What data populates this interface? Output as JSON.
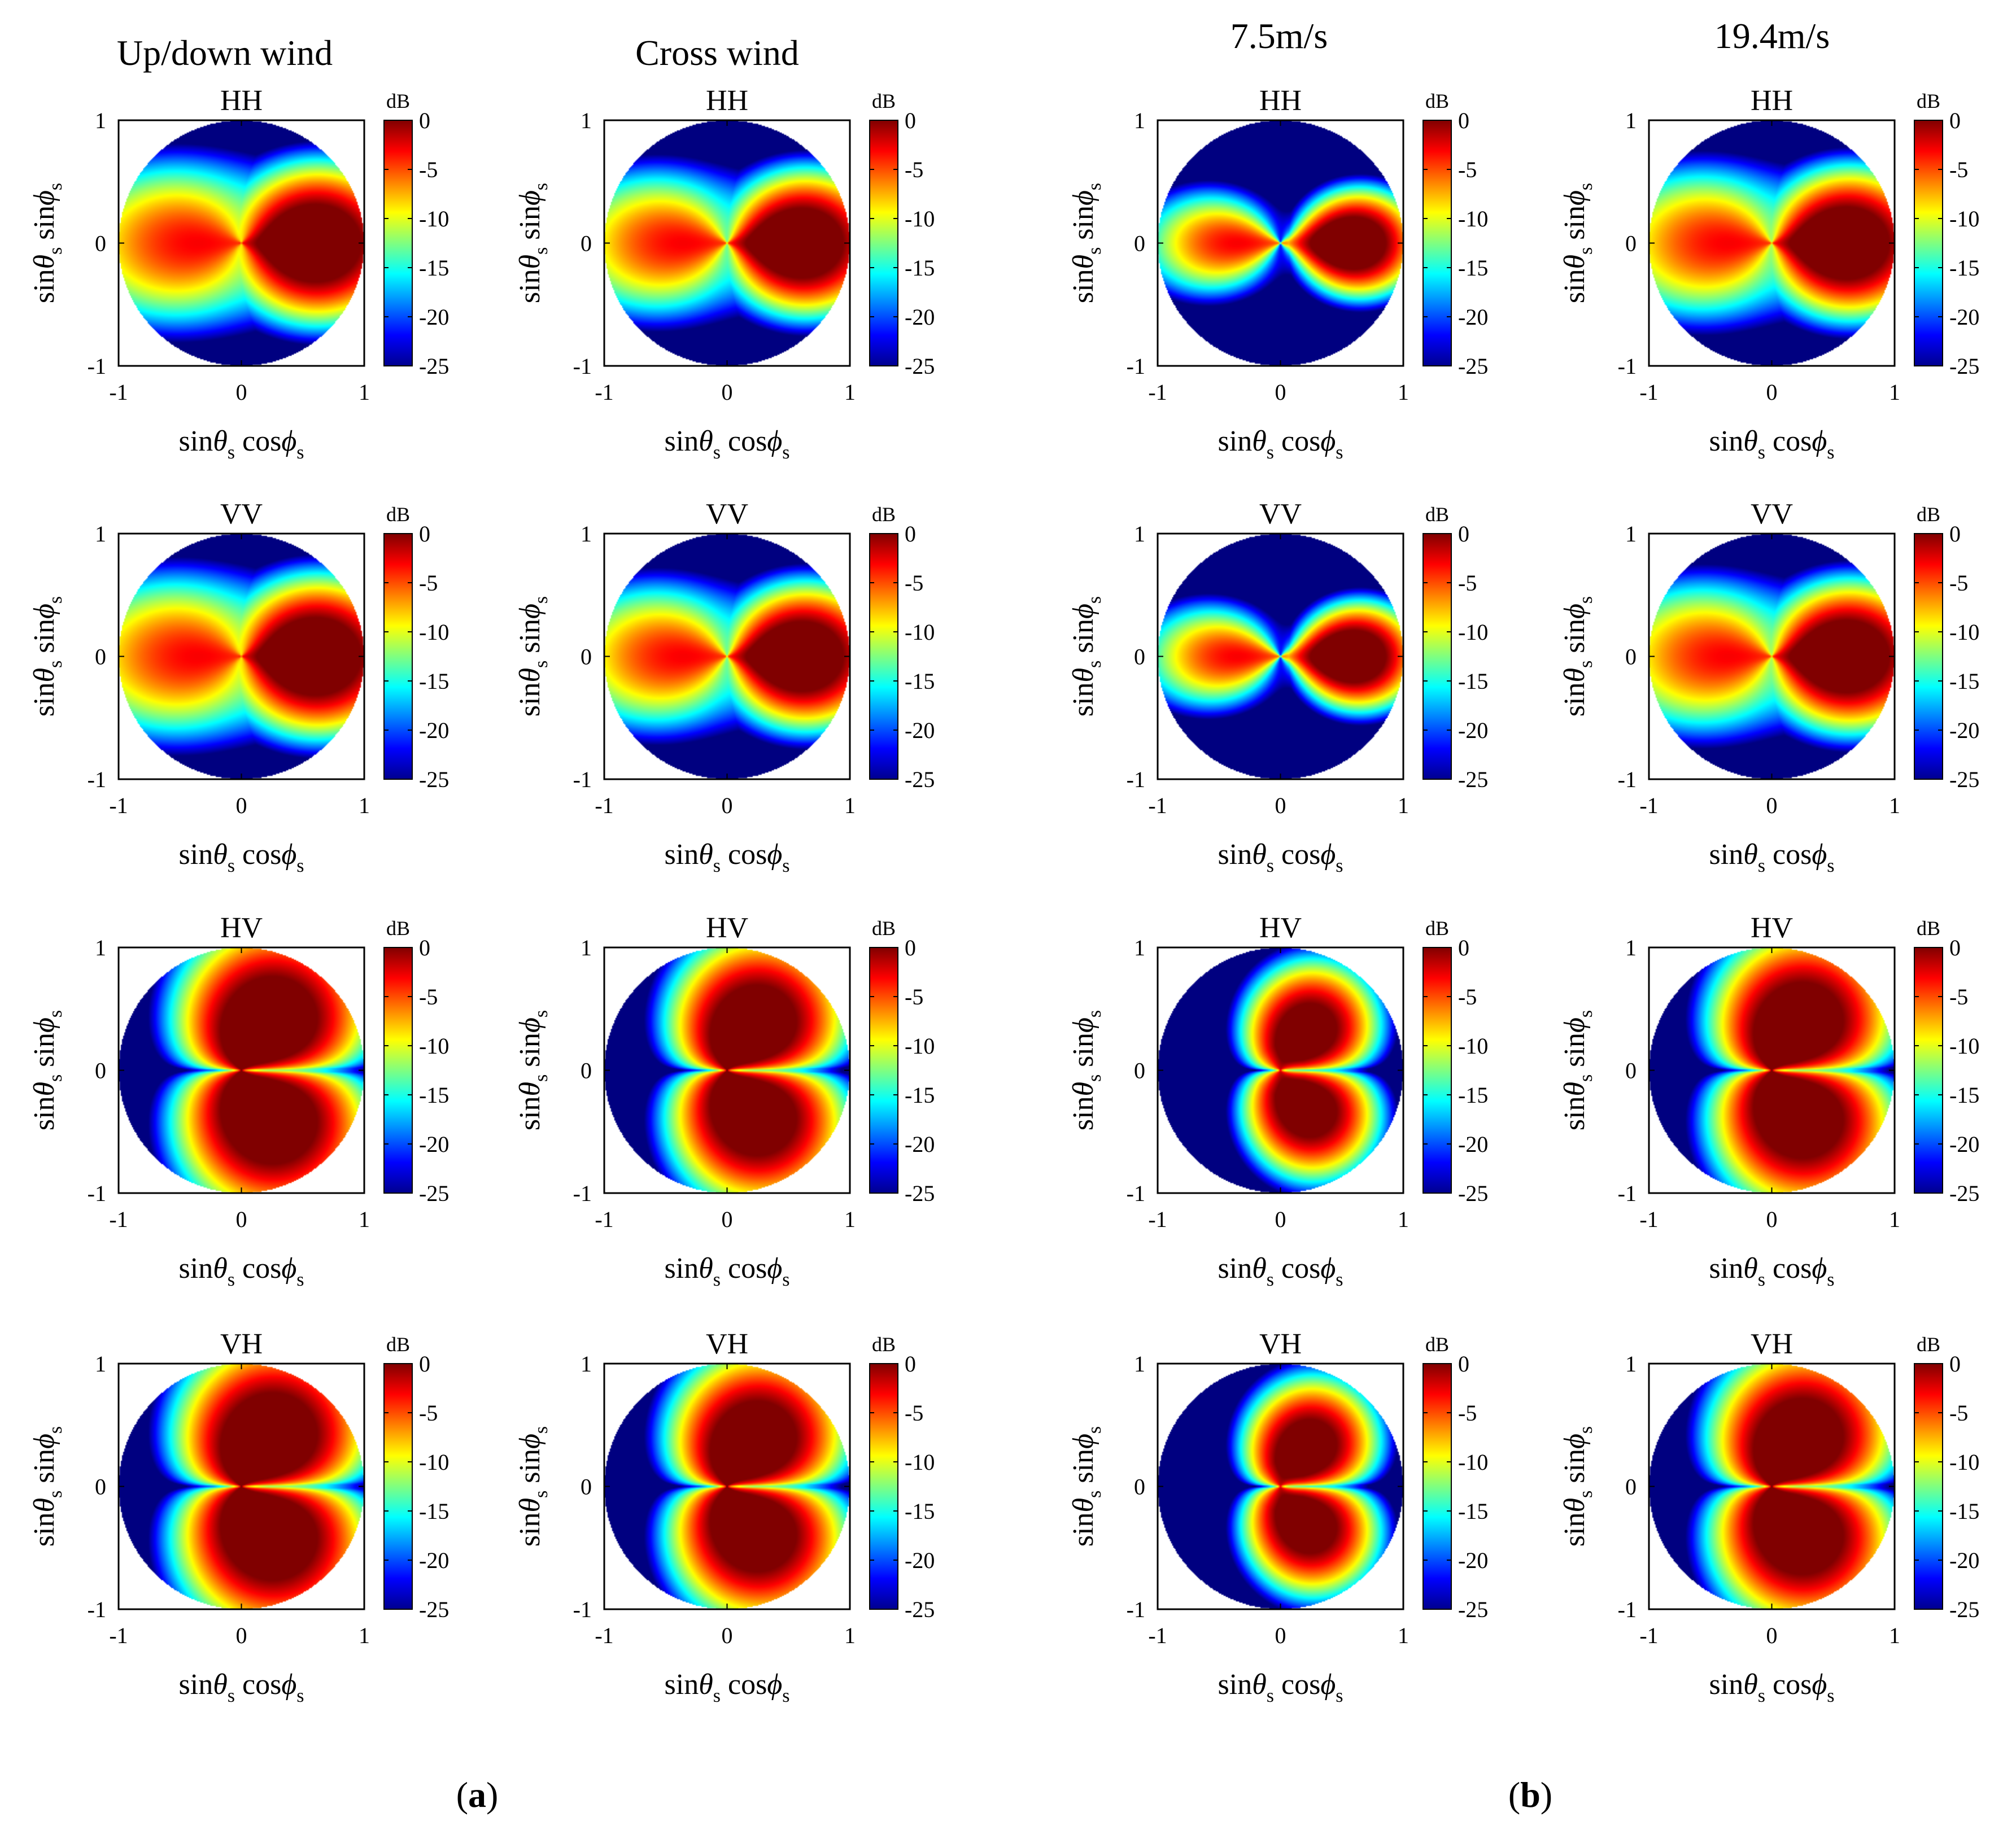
{
  "figure": {
    "panel_labels": [
      {
        "open": "(",
        "letter": "a",
        "close": ")"
      },
      {
        "open": "(",
        "letter": "b",
        "close": ")"
      }
    ],
    "column_titles": [
      "Up/down wind",
      "Cross wind",
      "7.5m/s",
      "19.4m/s"
    ],
    "row_titles": [
      "HH",
      "VV",
      "HV",
      "VH"
    ],
    "colorbar_unit": "dB",
    "colorbar_ticks": [
      "0",
      "-5",
      "-10",
      "-15",
      "-20",
      "-25"
    ],
    "x_ticks": [
      "-1",
      "0",
      "1"
    ],
    "y_ticks": [
      "1",
      "0",
      "-1"
    ],
    "xlabel": {
      "a": "sin",
      "b": "θ",
      "c": "s",
      "d": " cos",
      "e": "ϕ",
      "f": "s"
    },
    "ylabel": {
      "a": "sin",
      "b": "θ",
      "c": "s",
      "d": " sin",
      "e": "ϕ",
      "f": "s"
    }
  },
  "chart_data": {
    "type": "heatmap",
    "description_units": "normalized backscatter in dB",
    "colormap": "jet",
    "clim": [
      -25,
      0
    ],
    "x_axis": {
      "label": "sinθs cosϕs",
      "range": [
        -1,
        1
      ]
    },
    "y_axis": {
      "label": "sinθs sinϕs",
      "range": [
        -1,
        1
      ]
    },
    "domain": "unit disk",
    "columns": [
      {
        "panel": "a",
        "title": "Up/down wind",
        "spread": 1.0
      },
      {
        "panel": "a",
        "title": "Cross wind",
        "spread": 0.85
      },
      {
        "panel": "b",
        "title": "7.5m/s",
        "spread": 0.45
      },
      {
        "panel": "b",
        "title": "19.4m/s",
        "spread": 0.9
      }
    ],
    "rows": [
      {
        "pol": "HH",
        "pattern": "specular",
        "peak_x": 0.55
      },
      {
        "pol": "VV",
        "pattern": "specular",
        "peak_x": 0.55
      },
      {
        "pol": "HV",
        "pattern": "cross",
        "peak_x": 0.3
      },
      {
        "pol": "VH",
        "pattern": "cross",
        "peak_x": 0.3
      }
    ]
  }
}
